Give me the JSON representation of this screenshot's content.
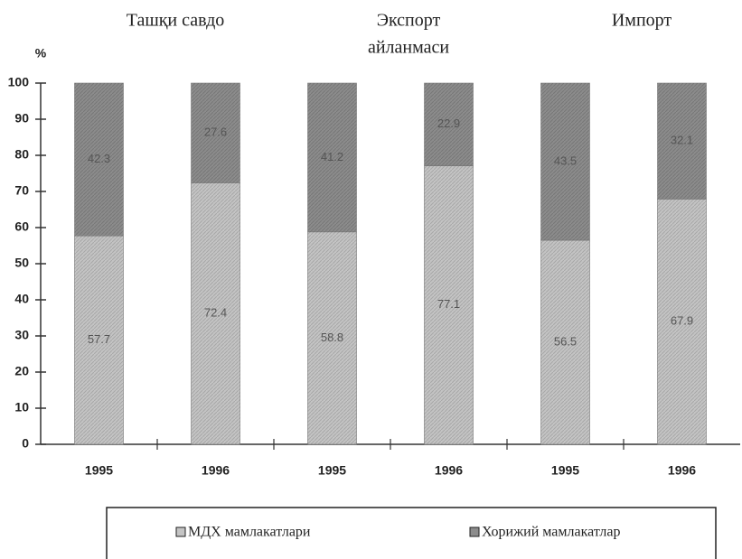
{
  "chart_data": {
    "type": "stacked_bar",
    "groups": [
      [
        "Ташқи савдо"
      ],
      [
        "Экспорт",
        "айланмаси"
      ],
      [
        "Импорт"
      ]
    ],
    "y_label": "%",
    "categories": [
      "1995",
      "1996",
      "1995",
      "1996",
      "1995",
      "1996"
    ],
    "series": [
      {
        "name": "МДХ мамлакатлари",
        "color": "#c4c4c4",
        "values": [
          57.7,
          72.4,
          58.8,
          77.1,
          56.5,
          67.9
        ]
      },
      {
        "name": "Хорижий мамлакатлар",
        "color": "#8c8c8c",
        "values": [
          42.3,
          27.6,
          41.2,
          22.9,
          43.5,
          32.1
        ]
      }
    ],
    "ylim": [
      0,
      100
    ],
    "yticks": [
      0,
      10,
      20,
      30,
      40,
      50,
      60,
      70,
      80,
      90,
      100
    ],
    "legend": "bottom"
  }
}
